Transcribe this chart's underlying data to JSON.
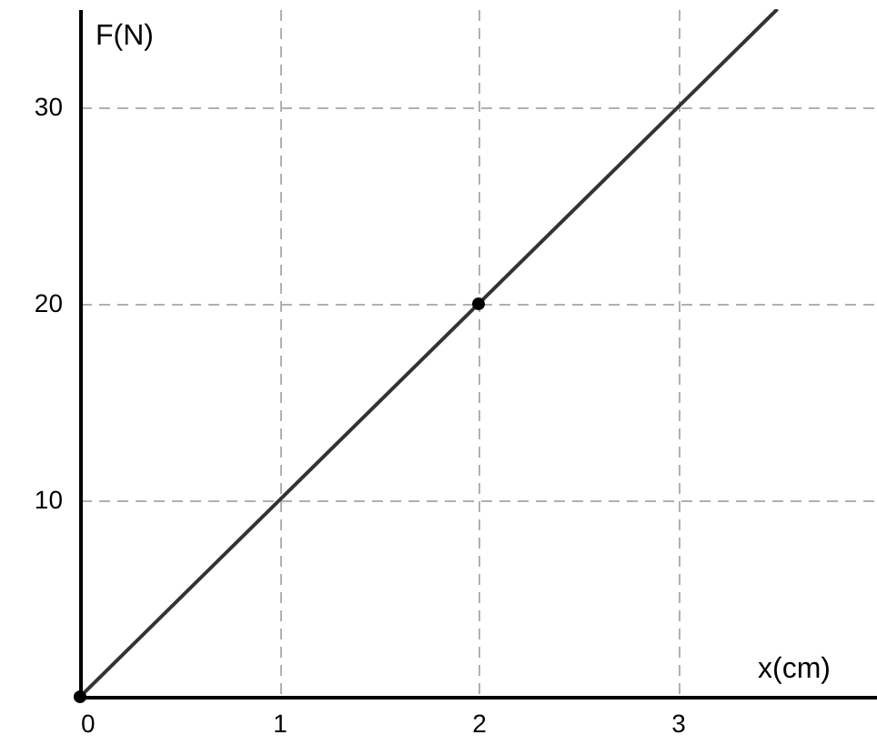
{
  "chart_data": {
    "type": "line",
    "xlabel": "x(cm)",
    "ylabel": "F(N)",
    "xlim": [
      0,
      4
    ],
    "ylim": [
      0,
      35
    ],
    "xticks": [
      0,
      1,
      2,
      3
    ],
    "yticks": [
      {
        "value": 0,
        "label": null
      },
      10,
      20,
      30
    ],
    "grid": true,
    "series": [
      {
        "color": "#333333",
        "x": [
          0,
          3.5
        ],
        "values": [
          0,
          35
        ],
        "marker": "none",
        "line_style": "solid"
      },
      {
        "type": "scatter",
        "color": "#000000",
        "x": [
          0,
          2
        ],
        "values": [
          0,
          20
        ],
        "marker": "circle"
      }
    ]
  }
}
